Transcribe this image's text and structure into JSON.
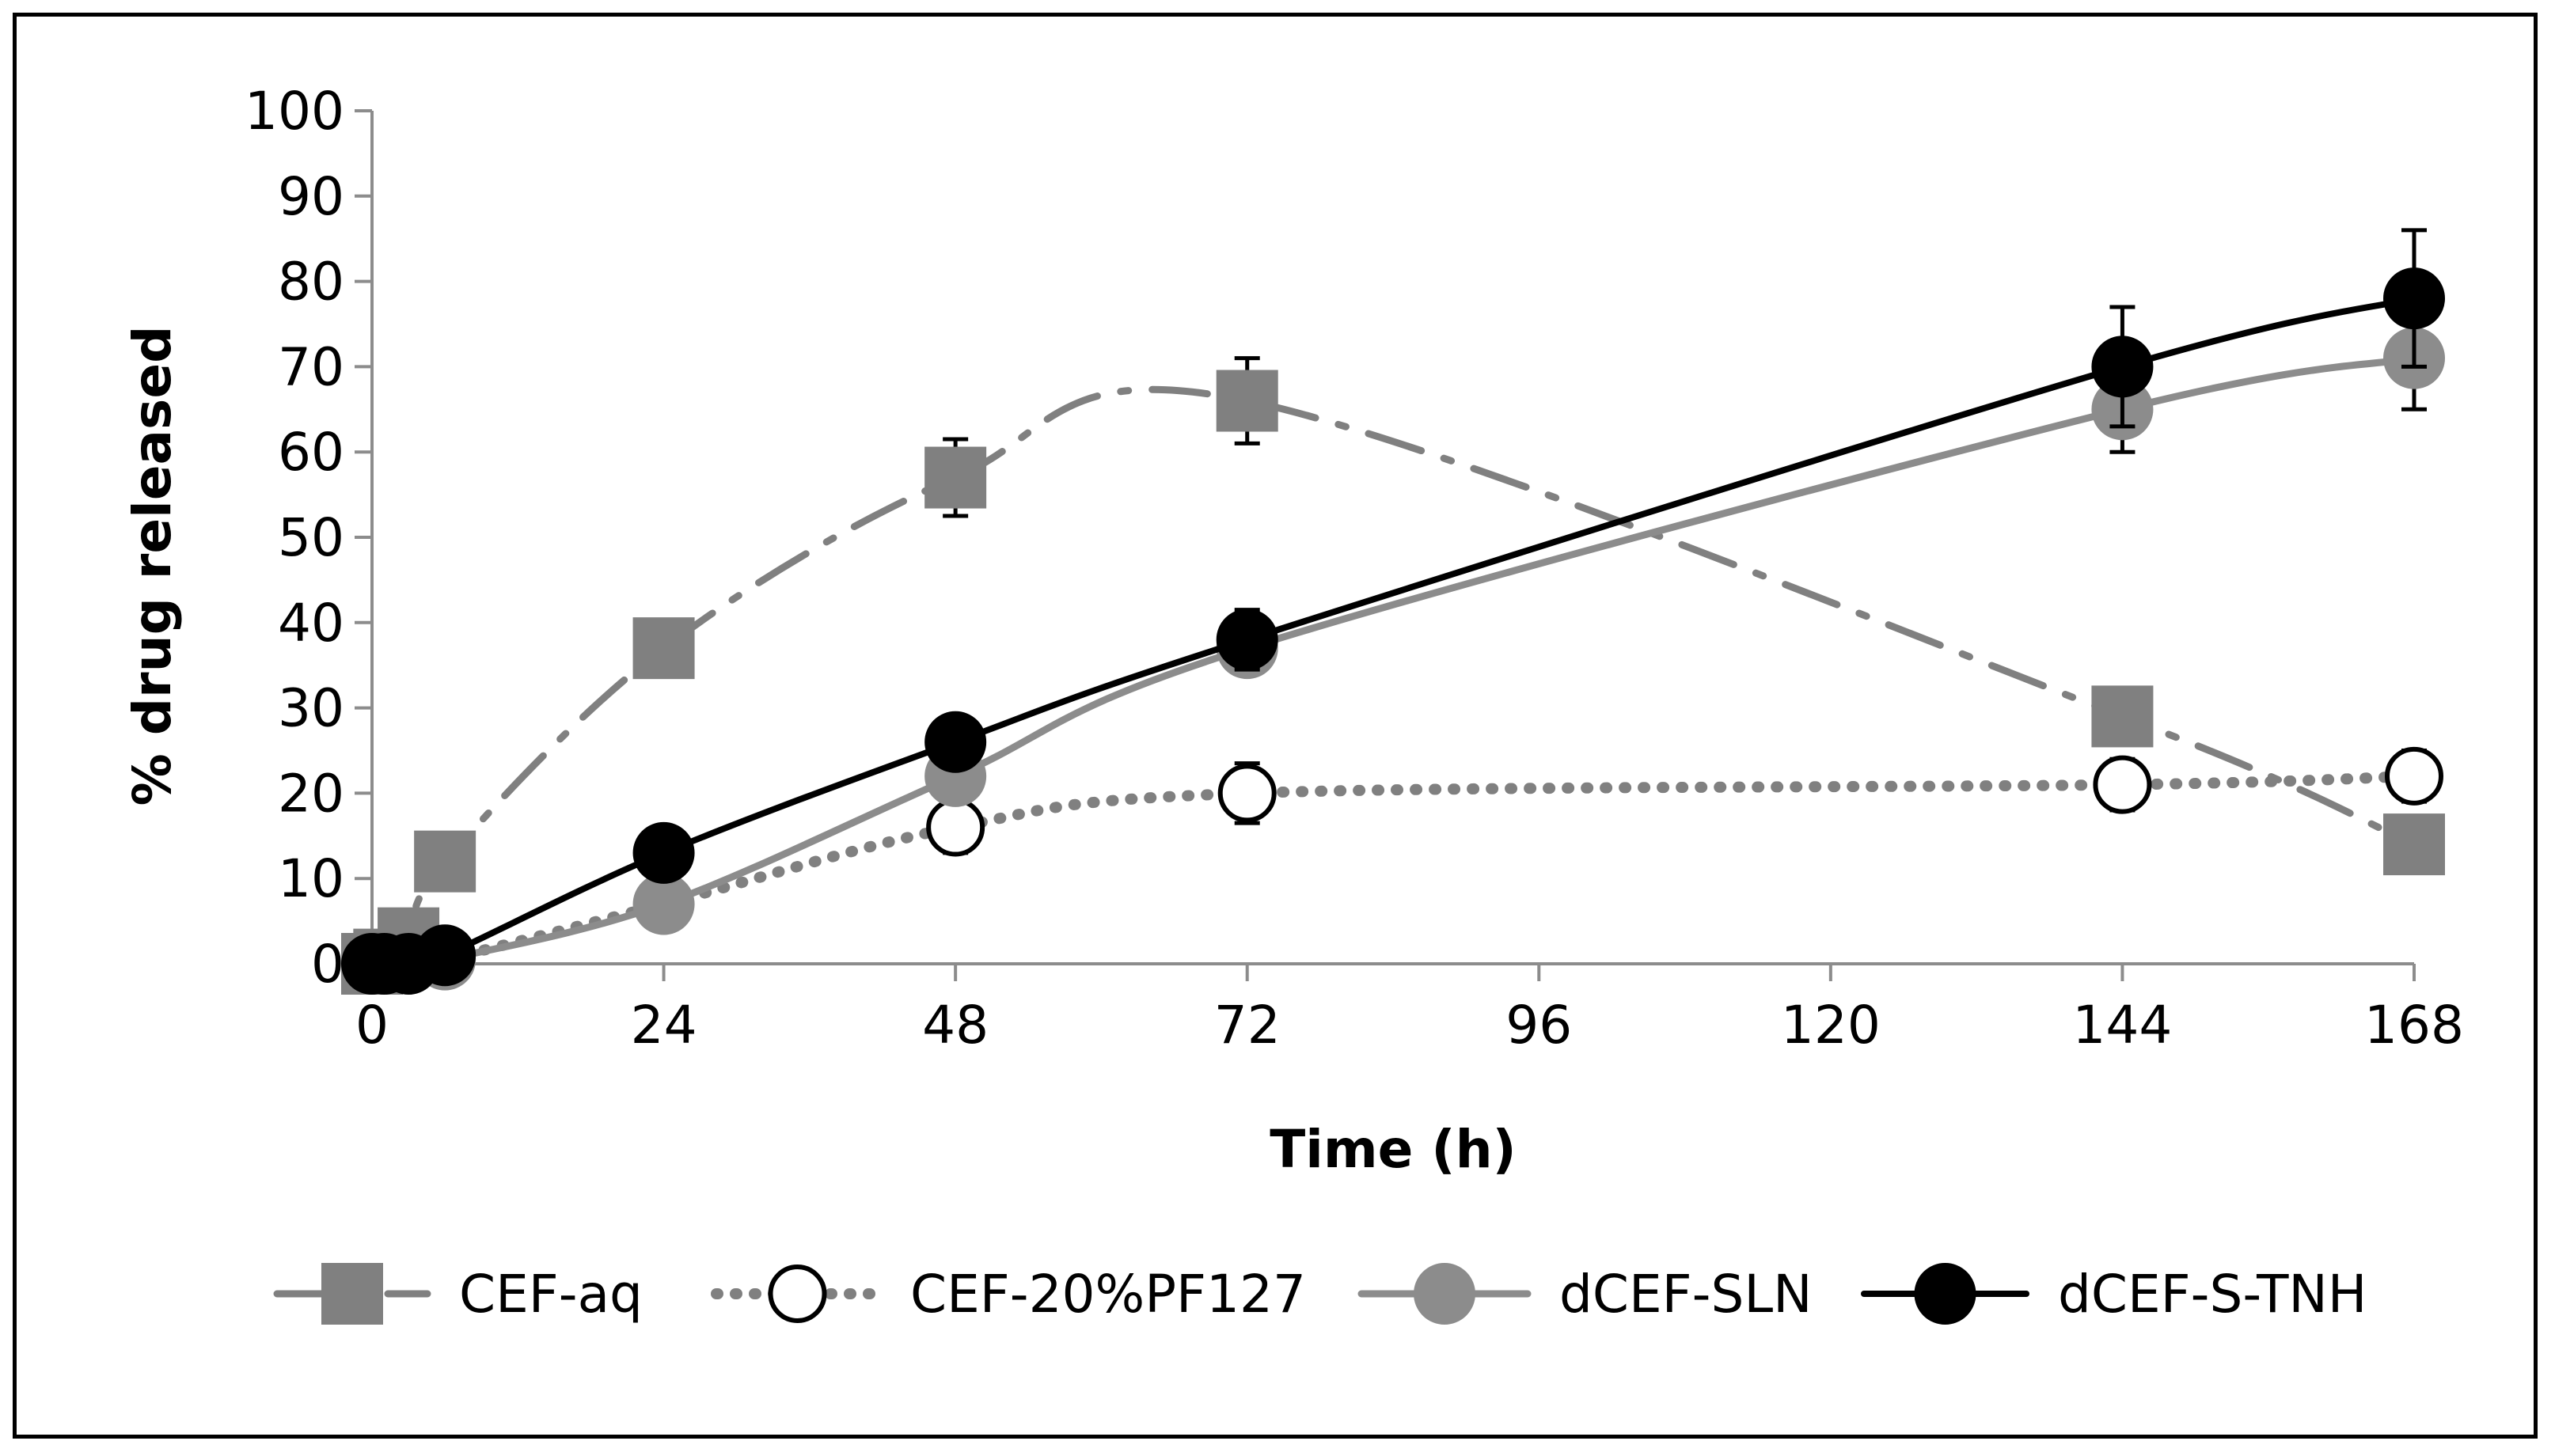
{
  "chart_data": {
    "type": "line",
    "title": "",
    "xlabel": "Time (h)",
    "ylabel": "% drug released",
    "xlim": [
      0,
      168
    ],
    "ylim": [
      0,
      100
    ],
    "xticks": [
      0,
      24,
      48,
      72,
      96,
      120,
      144,
      168
    ],
    "yticks": [
      0,
      10,
      20,
      30,
      40,
      50,
      60,
      70,
      80,
      90,
      100
    ],
    "grid": false,
    "legend_position": "bottom",
    "series": [
      {
        "name": "CEF-aq",
        "color": "#808080",
        "line": "dash-dot",
        "marker": "square",
        "marker_fill": "#808080",
        "x": [
          0,
          1,
          3,
          6,
          24,
          48,
          72,
          144,
          168
        ],
        "y": [
          0,
          0.5,
          3,
          12,
          37,
          57,
          66,
          29,
          14
        ],
        "err": [
          0,
          0,
          0,
          0,
          1.5,
          4.5,
          5,
          0,
          0
        ]
      },
      {
        "name": "CEF-20%PF127",
        "color": "#808080",
        "line": "dotted",
        "marker": "circle-open",
        "marker_fill": "#ffffff",
        "x": [
          0,
          1,
          3,
          6,
          24,
          48,
          72,
          144,
          168
        ],
        "y": [
          0,
          0,
          0,
          0.5,
          7,
          16,
          20,
          21,
          22
        ],
        "err": [
          0,
          0,
          0,
          0,
          0,
          3,
          3.5,
          3,
          3
        ]
      },
      {
        "name": "dCEF-SLN",
        "color": "#8c8c8c",
        "line": "solid",
        "marker": "circle",
        "marker_fill": "#8c8c8c",
        "x": [
          0,
          1,
          3,
          6,
          24,
          48,
          72,
          144,
          168
        ],
        "y": [
          0,
          0,
          0,
          0.5,
          7,
          22,
          37,
          65,
          71
        ],
        "err": [
          0,
          0,
          0,
          0,
          3,
          0,
          3,
          5,
          6
        ]
      },
      {
        "name": "dCEF-S-TNH",
        "color": "#000000",
        "line": "solid",
        "marker": "circle",
        "marker_fill": "#000000",
        "x": [
          0,
          1,
          3,
          6,
          24,
          48,
          72,
          144,
          168
        ],
        "y": [
          0,
          0,
          0,
          1,
          13,
          26,
          38,
          70,
          78
        ],
        "err": [
          0,
          0,
          0,
          0,
          2,
          2,
          3.5,
          7,
          8
        ]
      }
    ]
  }
}
